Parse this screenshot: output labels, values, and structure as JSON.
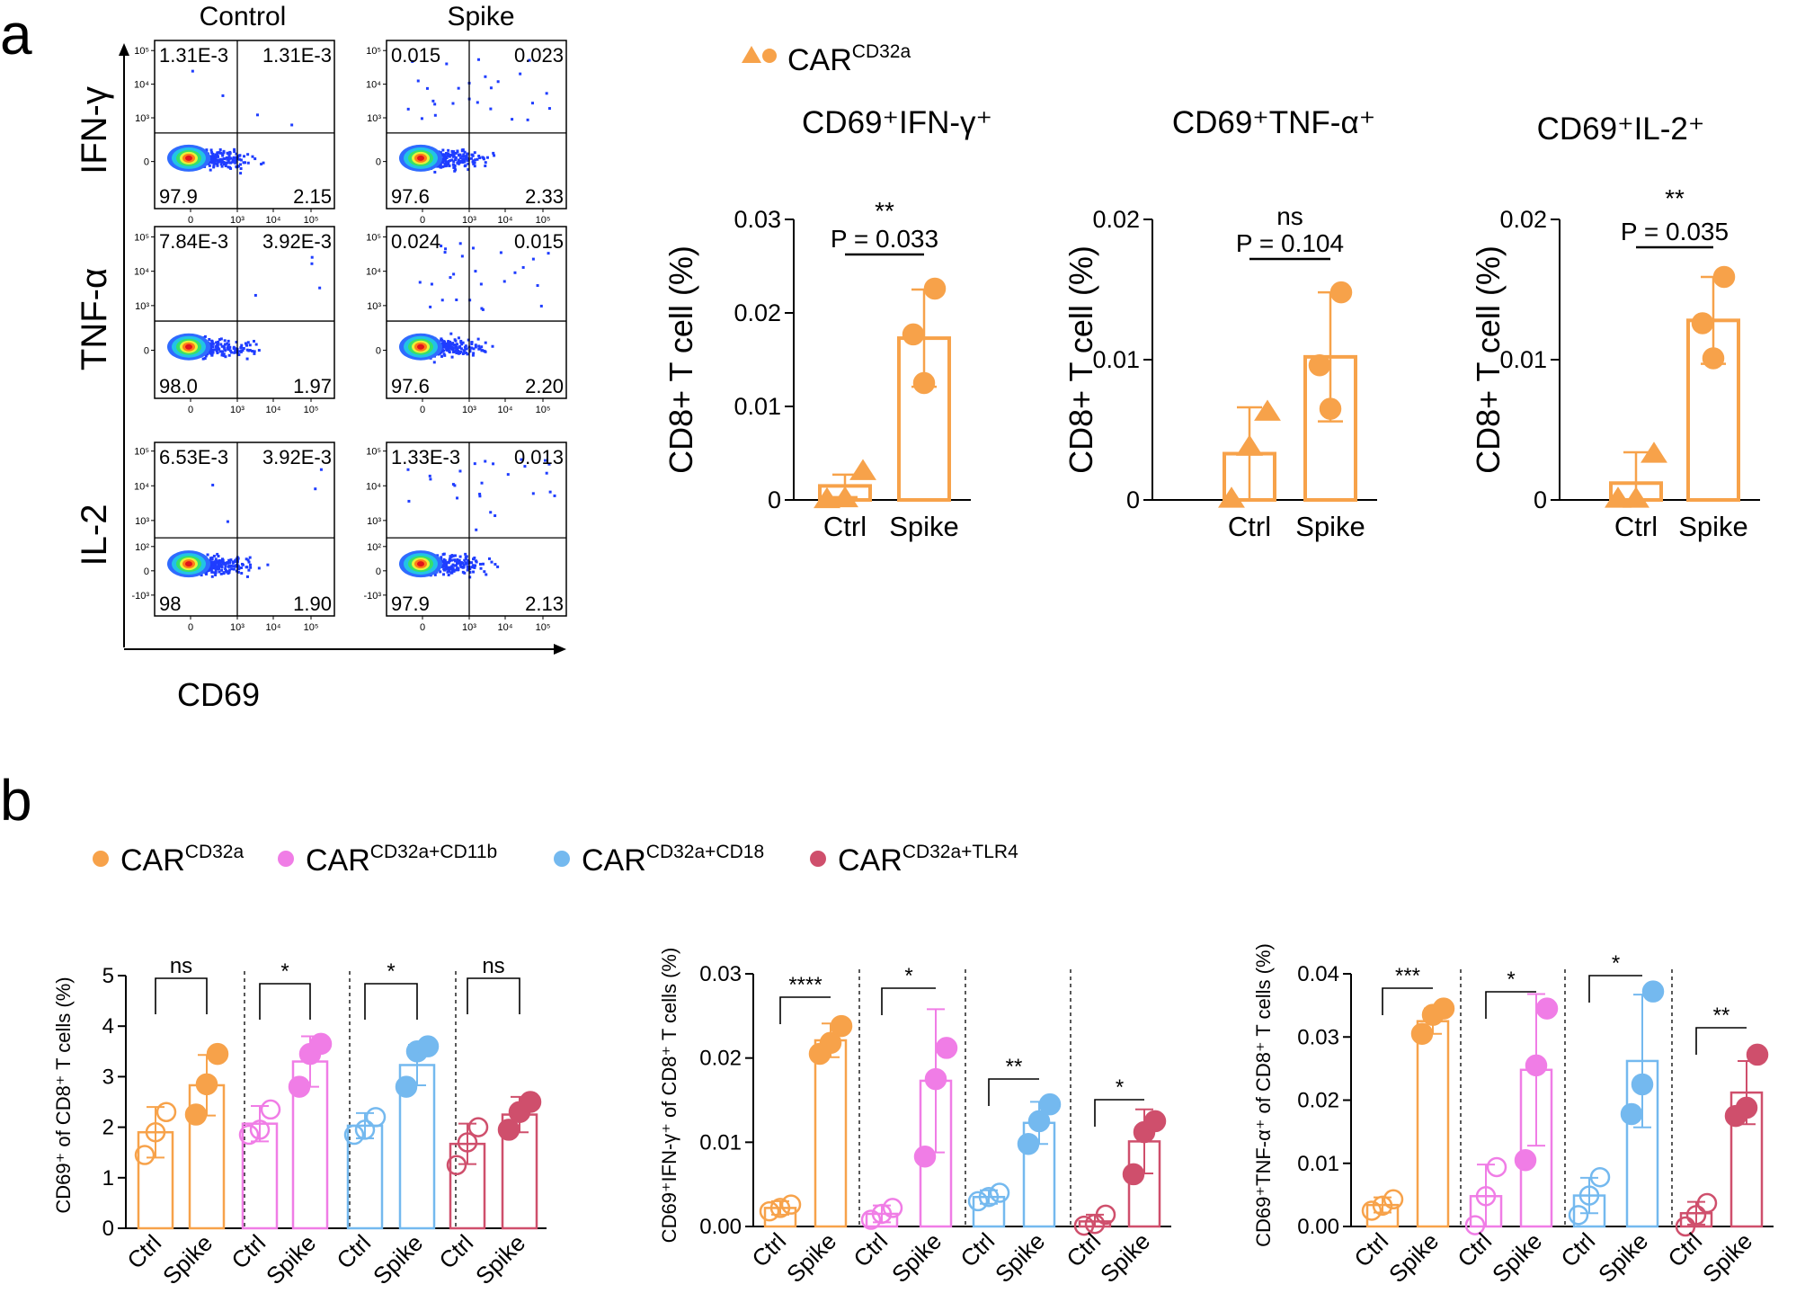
{
  "panel_a": {
    "label": "a",
    "col_labels": [
      "Control",
      "Spike"
    ],
    "row_labels": [
      "IFN-γ",
      "TNF-α",
      "IL-2"
    ],
    "x_axis_label": "CD69",
    "log_ticks": [
      "10⁵",
      "10⁴",
      "10³",
      "10²",
      "0",
      "-10³"
    ],
    "x_log_ticks": [
      "0",
      "10³",
      "10⁴",
      "10⁵"
    ],
    "flow_plots": [
      {
        "row": "IFN-γ",
        "col": "Control",
        "q_ul": "1.31E-3",
        "q_ur": "1.31E-3",
        "q_ll": "97.9",
        "q_lr": "2.15"
      },
      {
        "row": "IFN-γ",
        "col": "Spike",
        "q_ul": "0.015",
        "q_ur": "0.023",
        "q_ll": "97.6",
        "q_lr": "2.33"
      },
      {
        "row": "TNF-α",
        "col": "Control",
        "q_ul": "7.84E-3",
        "q_ur": "3.92E-3",
        "q_ll": "98.0",
        "q_lr": "1.97"
      },
      {
        "row": "TNF-α",
        "col": "Spike",
        "q_ul": "0.024",
        "q_ur": "0.015",
        "q_ll": "97.6",
        "q_lr": "2.20"
      },
      {
        "row": "IL-2",
        "col": "Control",
        "q_ul": "6.53E-3",
        "q_ur": "3.92E-3",
        "q_ll": "98",
        "q_lr": "1.90"
      },
      {
        "row": "IL-2",
        "col": "Spike",
        "q_ul": "1.33E-3",
        "q_ur": "0.013",
        "q_ll": "97.9",
        "q_lr": "2.13"
      }
    ],
    "legend": {
      "name": "CAR",
      "sup": "CD32a"
    }
  },
  "panel_b": {
    "label": "b",
    "legend": [
      {
        "name": "CAR",
        "sup": "CD32a",
        "color": "#f7a24a"
      },
      {
        "name": "CAR",
        "sup": "CD32a+CD11b",
        "color": "#f07de6"
      },
      {
        "name": "CAR",
        "sup": "CD32a+CD18",
        "color": "#74b9ef"
      },
      {
        "name": "CAR",
        "sup": "CD32a+TLR4",
        "color": "#cf4f6c"
      }
    ]
  },
  "chart_data": [
    {
      "type": "bar",
      "title": "CD69⁺IFN-γ⁺",
      "ylabel": "CD8+ T cell (%)",
      "categories": [
        "Ctrl",
        "Spike"
      ],
      "values": [
        0.0015,
        0.0173
      ],
      "errors": [
        0.0012,
        0.0052
      ],
      "points": [
        [
          0.0001,
          0.0002,
          0.0031
        ],
        [
          0.0125,
          0.0177,
          0.0226
        ]
      ],
      "markers": [
        "triangle",
        "circle"
      ],
      "color": "#f7a24a",
      "ylim": [
        0,
        0.03
      ],
      "yticks": [
        0,
        0.01,
        0.02,
        0.03
      ],
      "ytick_labels": [
        "0",
        "0.01",
        "0.02",
        "0.03"
      ],
      "significance": {
        "stars": "**",
        "p": "P = 0.033"
      }
    },
    {
      "type": "bar",
      "title": "CD69⁺TNF-α⁺",
      "ylabel": "CD8+ T cell (%)",
      "categories": [
        "Ctrl",
        "Spike"
      ],
      "values": [
        0.0033,
        0.0102
      ],
      "errors": [
        0.0033,
        0.0046
      ],
      "points": [
        [
          0.0001,
          0.0038,
          0.0063
        ],
        [
          0.0065,
          0.0096,
          0.0148
        ]
      ],
      "markers": [
        "triangle",
        "circle"
      ],
      "color": "#f7a24a",
      "ylim": [
        0,
        0.02
      ],
      "yticks": [
        0,
        0.01,
        0.02
      ],
      "ytick_labels": [
        "0",
        "0.01",
        "0.02"
      ],
      "significance": {
        "stars": "ns",
        "p": "P = 0.104"
      }
    },
    {
      "type": "bar",
      "title": "CD69⁺IL-2⁺",
      "ylabel": "CD8+ T cell (%)",
      "categories": [
        "Ctrl",
        "Spike"
      ],
      "values": [
        0.0012,
        0.0128
      ],
      "errors": [
        0.0022,
        0.0031
      ],
      "points": [
        [
          0.0001,
          0.0001,
          0.0033
        ],
        [
          0.0101,
          0.0126,
          0.0159
        ]
      ],
      "markers": [
        "triangle",
        "circle"
      ],
      "color": "#f7a24a",
      "ylim": [
        0,
        0.02
      ],
      "yticks": [
        0,
        0.01,
        0.02
      ],
      "ytick_labels": [
        "0",
        "0.01",
        "0.02"
      ],
      "significance": {
        "stars": "**",
        "p": "P = 0.035"
      }
    },
    {
      "type": "bar",
      "ylabel": "CD69⁺ of CD8⁺ T cells (%)",
      "categories": [
        "Ctrl",
        "Spike",
        "Ctrl",
        "Spike",
        "Ctrl",
        "Spike",
        "Ctrl",
        "Spike"
      ],
      "groups": [
        "CAR CD32a",
        "CAR CD32a+CD11b",
        "CAR CD32a+CD18",
        "CAR CD32a+TLR4"
      ],
      "colors": [
        "#f7a24a",
        "#f07de6",
        "#74b9ef",
        "#cf4f6c"
      ],
      "values": [
        1.9,
        2.83,
        2.07,
        3.3,
        2.03,
        3.23,
        1.67,
        2.25
      ],
      "errors": [
        0.5,
        0.6,
        0.35,
        0.5,
        0.25,
        0.4,
        0.4,
        0.35
      ],
      "points": [
        [
          1.45,
          1.9,
          2.3
        ],
        [
          2.25,
          2.85,
          3.45
        ],
        [
          1.85,
          1.95,
          2.35
        ],
        [
          2.8,
          3.45,
          3.65
        ],
        [
          1.85,
          1.95,
          2.2
        ],
        [
          2.8,
          3.5,
          3.6
        ],
        [
          1.25,
          1.7,
          2.0
        ],
        [
          1.95,
          2.3,
          2.5
        ]
      ],
      "ylim": [
        0,
        5
      ],
      "yticks": [
        0,
        1,
        2,
        3,
        4,
        5
      ],
      "ytick_labels": [
        "0",
        "1",
        "2",
        "3",
        "4",
        "5"
      ],
      "significance": [
        "ns",
        "*",
        "*",
        "ns"
      ]
    },
    {
      "type": "bar",
      "ylabel": "CD69⁺IFN-γ⁺ of CD8⁺ T cells (%)",
      "categories": [
        "Ctrl",
        "Spike",
        "Ctrl",
        "Spike",
        "Ctrl",
        "Spike",
        "Ctrl",
        "Spike"
      ],
      "groups": [
        "CAR CD32a",
        "CAR CD32a+CD11b",
        "CAR CD32a+CD18",
        "CAR CD32a+TLR4"
      ],
      "colors": [
        "#f7a24a",
        "#f07de6",
        "#74b9ef",
        "#cf4f6c"
      ],
      "values": [
        0.0022,
        0.0221,
        0.0015,
        0.0173,
        0.0035,
        0.0123,
        0.0006,
        0.0101
      ],
      "errors": [
        0.0008,
        0.002,
        0.001,
        0.0085,
        0.0008,
        0.0025,
        0.0008,
        0.0038
      ],
      "points": [
        [
          0.0018,
          0.0022,
          0.0026
        ],
        [
          0.0205,
          0.0218,
          0.0238
        ],
        [
          0.0008,
          0.0015,
          0.0022
        ],
        [
          0.0083,
          0.0175,
          0.0212
        ],
        [
          0.003,
          0.0035,
          0.004
        ],
        [
          0.0098,
          0.0125,
          0.0145
        ],
        [
          0.0001,
          0.0003,
          0.0014
        ],
        [
          0.0062,
          0.0112,
          0.0125
        ]
      ],
      "ylim": [
        0,
        0.03
      ],
      "yticks": [
        0,
        0.01,
        0.02,
        0.03
      ],
      "ytick_labels": [
        "0.00",
        "0.01",
        "0.02",
        "0.03"
      ],
      "significance": [
        {
          "stars": "****",
          "pair": [
            0,
            1
          ]
        },
        {
          "stars": "*",
          "pair": [
            2,
            3
          ]
        },
        {
          "stars": "**",
          "pair": [
            4,
            5
          ]
        },
        {
          "stars": "*",
          "pair": [
            6,
            7
          ]
        }
      ]
    },
    {
      "type": "bar",
      "ylabel": "CD69⁺TNF-α⁺ of CD8⁺ T cells (%)",
      "categories": [
        "Ctrl",
        "Spike",
        "Ctrl",
        "Spike",
        "Ctrl",
        "Spike",
        "Ctrl",
        "Spike"
      ],
      "groups": [
        "CAR CD32a",
        "CAR CD32a+CD11b",
        "CAR CD32a+CD18",
        "CAR CD32a+TLR4"
      ],
      "colors": [
        "#f7a24a",
        "#f07de6",
        "#74b9ef",
        "#cf4f6c"
      ],
      "values": [
        0.0034,
        0.0325,
        0.0048,
        0.0248,
        0.0049,
        0.0262,
        0.0021,
        0.0212
      ],
      "errors": [
        0.0012,
        0.002,
        0.005,
        0.012,
        0.0028,
        0.0105,
        0.0018,
        0.005
      ],
      "points": [
        [
          0.0025,
          0.0033,
          0.0043
        ],
        [
          0.0305,
          0.0335,
          0.0345
        ],
        [
          0.0002,
          0.0048,
          0.0094
        ],
        [
          0.0105,
          0.0255,
          0.0345
        ],
        [
          0.0018,
          0.0049,
          0.0078
        ],
        [
          0.0178,
          0.0225,
          0.0372
        ],
        [
          0.0,
          0.0018,
          0.0037
        ],
        [
          0.0175,
          0.0188,
          0.0272
        ]
      ],
      "ylim": [
        0,
        0.04
      ],
      "yticks": [
        0,
        0.01,
        0.02,
        0.03,
        0.04
      ],
      "ytick_labels": [
        "0.00",
        "0.01",
        "0.02",
        "0.03",
        "0.04"
      ],
      "significance": [
        {
          "stars": "***",
          "pair": [
            0,
            1
          ]
        },
        {
          "stars": "*",
          "pair": [
            2,
            3
          ]
        },
        {
          "stars": "*",
          "pair": [
            4,
            5
          ]
        },
        {
          "stars": "**",
          "pair": [
            6,
            7
          ]
        }
      ]
    }
  ]
}
